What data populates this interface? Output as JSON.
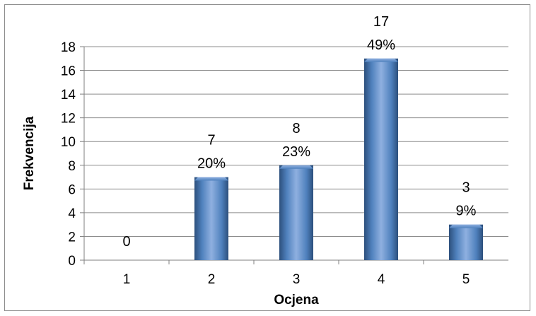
{
  "chart_data": {
    "type": "bar",
    "categories": [
      "1",
      "2",
      "3",
      "4",
      "5"
    ],
    "values": [
      0,
      7,
      8,
      17,
      3
    ],
    "percent_labels": [
      "",
      "20%",
      "23%",
      "49%",
      "9%"
    ],
    "title": "",
    "xlabel": "Ocjena",
    "ylabel": "Frekvencija",
    "ylim": [
      0,
      18
    ],
    "yticks": [
      "0",
      "2",
      "4",
      "6",
      "8",
      "10",
      "12",
      "14",
      "16",
      "18"
    ],
    "grid": true,
    "legend": "none",
    "colors": {
      "bar_light": "#8fb0e0",
      "bar_mid": "#4f81bd",
      "bar_dark": "#2c4f7c",
      "grid": "#8c8c8c",
      "axis": "#7f7f7f"
    }
  }
}
